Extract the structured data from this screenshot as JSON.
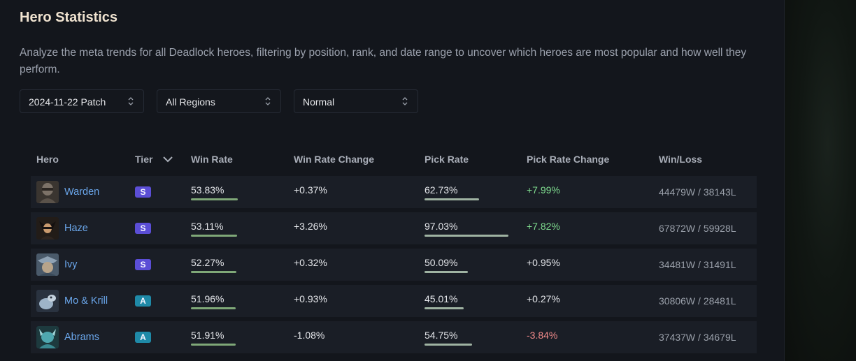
{
  "title": "Hero Statistics",
  "description": "Analyze the meta trends for all Deadlock heroes, filtering by position, rank, and date range to uncover which heroes are most popular and how well they perform.",
  "filters": {
    "patch": "2024-11-22 Patch",
    "region": "All Regions",
    "mode": "Normal"
  },
  "table": {
    "headers": {
      "hero": "Hero",
      "tier": "Tier",
      "win_rate": "Win Rate",
      "win_rate_change": "Win Rate Change",
      "pick_rate": "Pick Rate",
      "pick_rate_change": "Pick Rate Change",
      "win_loss": "Win/Loss"
    },
    "rows": [
      {
        "hero": "Warden",
        "tier": "S",
        "win_rate": "53.83%",
        "win_rate_change": "+0.37%",
        "pick_rate": "62.73%",
        "pick_rate_change": "+7.99%",
        "pick_change_color": "#7fdc8f",
        "win_loss": "44479W / 38143L",
        "win_bar": 0.5383,
        "pick_bar": 0.6273
      },
      {
        "hero": "Haze",
        "tier": "S",
        "win_rate": "53.11%",
        "win_rate_change": "+3.26%",
        "pick_rate": "97.03%",
        "pick_rate_change": "+7.82%",
        "pick_change_color": "#7fdc8f",
        "win_loss": "67872W / 59928L",
        "win_bar": 0.5311,
        "pick_bar": 0.9703
      },
      {
        "hero": "Ivy",
        "tier": "S",
        "win_rate": "52.27%",
        "win_rate_change": "+0.32%",
        "pick_rate": "50.09%",
        "pick_rate_change": "+0.95%",
        "pick_change_color": "#e4e6ea",
        "win_loss": "34481W / 31491L",
        "win_bar": 0.5227,
        "pick_bar": 0.5009
      },
      {
        "hero": "Mo & Krill",
        "tier": "A",
        "win_rate": "51.96%",
        "win_rate_change": "+0.93%",
        "pick_rate": "45.01%",
        "pick_rate_change": "+0.27%",
        "pick_change_color": "#e4e6ea",
        "win_loss": "30806W / 28481L",
        "win_bar": 0.5196,
        "pick_bar": 0.4501
      },
      {
        "hero": "Abrams",
        "tier": "A",
        "win_rate": "51.91%",
        "win_rate_change": "-1.08%",
        "pick_rate": "54.75%",
        "pick_rate_change": "-3.84%",
        "pick_change_color": "#f08a8a",
        "win_loss": "37437W / 34679L",
        "win_bar": 0.5191,
        "pick_bar": 0.5475
      }
    ]
  },
  "icons": {
    "select_chevron": "updown-chevron-icon",
    "sort": "chevron-down-icon"
  }
}
